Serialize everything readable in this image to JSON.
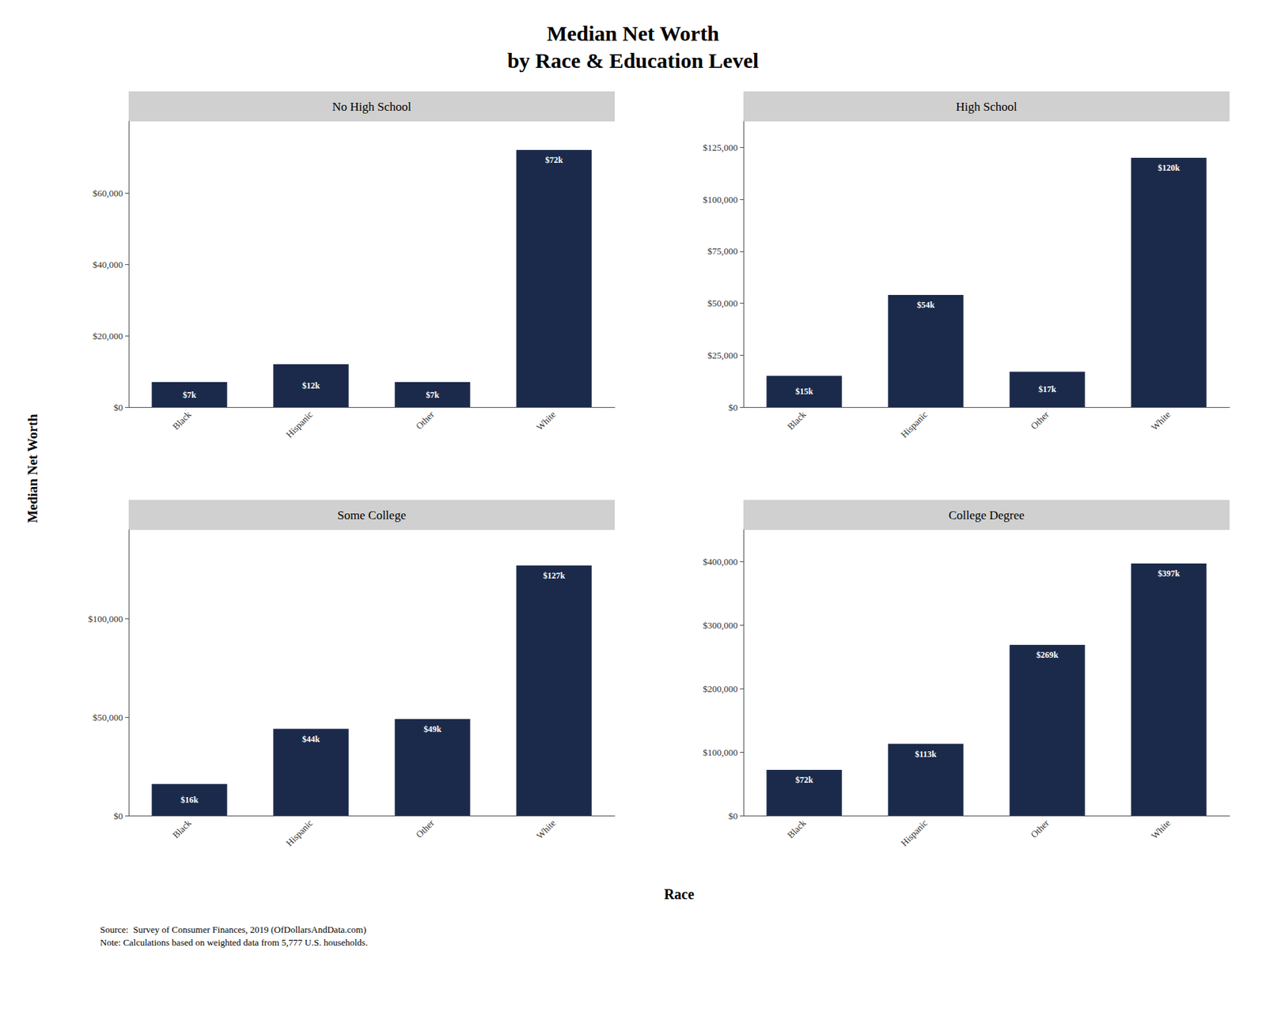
{
  "title": "Median Net Worth\nby Race & Education Level",
  "xlabel": "Race",
  "ylabel": "Median Net Worth",
  "annotations": [
    "Source:  Survey of Consumer Finances, 2019 (OfDollarsAndData.com)\nNote: Calculations based on weighted data from 5,777 U.S. households."
  ],
  "chart_data": [
    {
      "type": "bar",
      "title": "No High School",
      "categories": [
        "Black",
        "Hispanic",
        "Other",
        "White"
      ],
      "values": [
        7000,
        12000,
        7000,
        72000
      ],
      "value_labels": [
        "$7k",
        "$12k",
        "$7k",
        "$72k"
      ],
      "data_labels": true,
      "color": "#1B2A4A",
      "grid": false,
      "ylim": [
        0,
        80000
      ],
      "yticks": [
        {
          "value": 0,
          "label": "$0"
        },
        {
          "value": 20000,
          "label": "$20,000"
        },
        {
          "value": 40000,
          "label": "$40,000"
        },
        {
          "value": 60000,
          "label": "$60,000"
        }
      ]
    },
    {
      "type": "bar",
      "title": "High School",
      "categories": [
        "Black",
        "Hispanic",
        "Other",
        "White"
      ],
      "values": [
        15000,
        54000,
        17000,
        120000
      ],
      "value_labels": [
        "$15k",
        "$54k",
        "$17k",
        "$120k"
      ],
      "data_labels": true,
      "color": "#1B2A4A",
      "grid": false,
      "ylim": [
        0,
        137500
      ],
      "yticks": [
        {
          "value": 0,
          "label": "$0"
        },
        {
          "value": 25000,
          "label": "$25,000"
        },
        {
          "value": 50000,
          "label": "$50,000"
        },
        {
          "value": 75000,
          "label": "$75,000"
        },
        {
          "value": 100000,
          "label": "$100,000"
        },
        {
          "value": 125000,
          "label": "$125,000"
        }
      ]
    },
    {
      "type": "bar",
      "title": "Some College",
      "categories": [
        "Black",
        "Hispanic",
        "Other",
        "White"
      ],
      "values": [
        16000,
        44000,
        49000,
        127000
      ],
      "value_labels": [
        "$16k",
        "$44k",
        "$49k",
        "$127k"
      ],
      "data_labels": true,
      "color": "#1B2A4A",
      "grid": false,
      "ylim": [
        0,
        145000
      ],
      "yticks": [
        {
          "value": 0,
          "label": "$0"
        },
        {
          "value": 50000,
          "label": "$50,000"
        },
        {
          "value": 100000,
          "label": "$100,000"
        }
      ]
    },
    {
      "type": "bar",
      "title": "College Degree",
      "categories": [
        "Black",
        "Hispanic",
        "Other",
        "White"
      ],
      "values": [
        72000,
        113000,
        269000,
        397000
      ],
      "value_labels": [
        "$72k",
        "$113k",
        "$269k",
        "$397k"
      ],
      "data_labels": true,
      "color": "#1B2A4A",
      "grid": false,
      "ylim": [
        0,
        450000
      ],
      "yticks": [
        {
          "value": 0,
          "label": "$0"
        },
        {
          "value": 100000,
          "label": "$100,000"
        },
        {
          "value": 200000,
          "label": "$200,000"
        },
        {
          "value": 300000,
          "label": "$300,000"
        },
        {
          "value": 400000,
          "label": "$400,000"
        }
      ]
    }
  ]
}
